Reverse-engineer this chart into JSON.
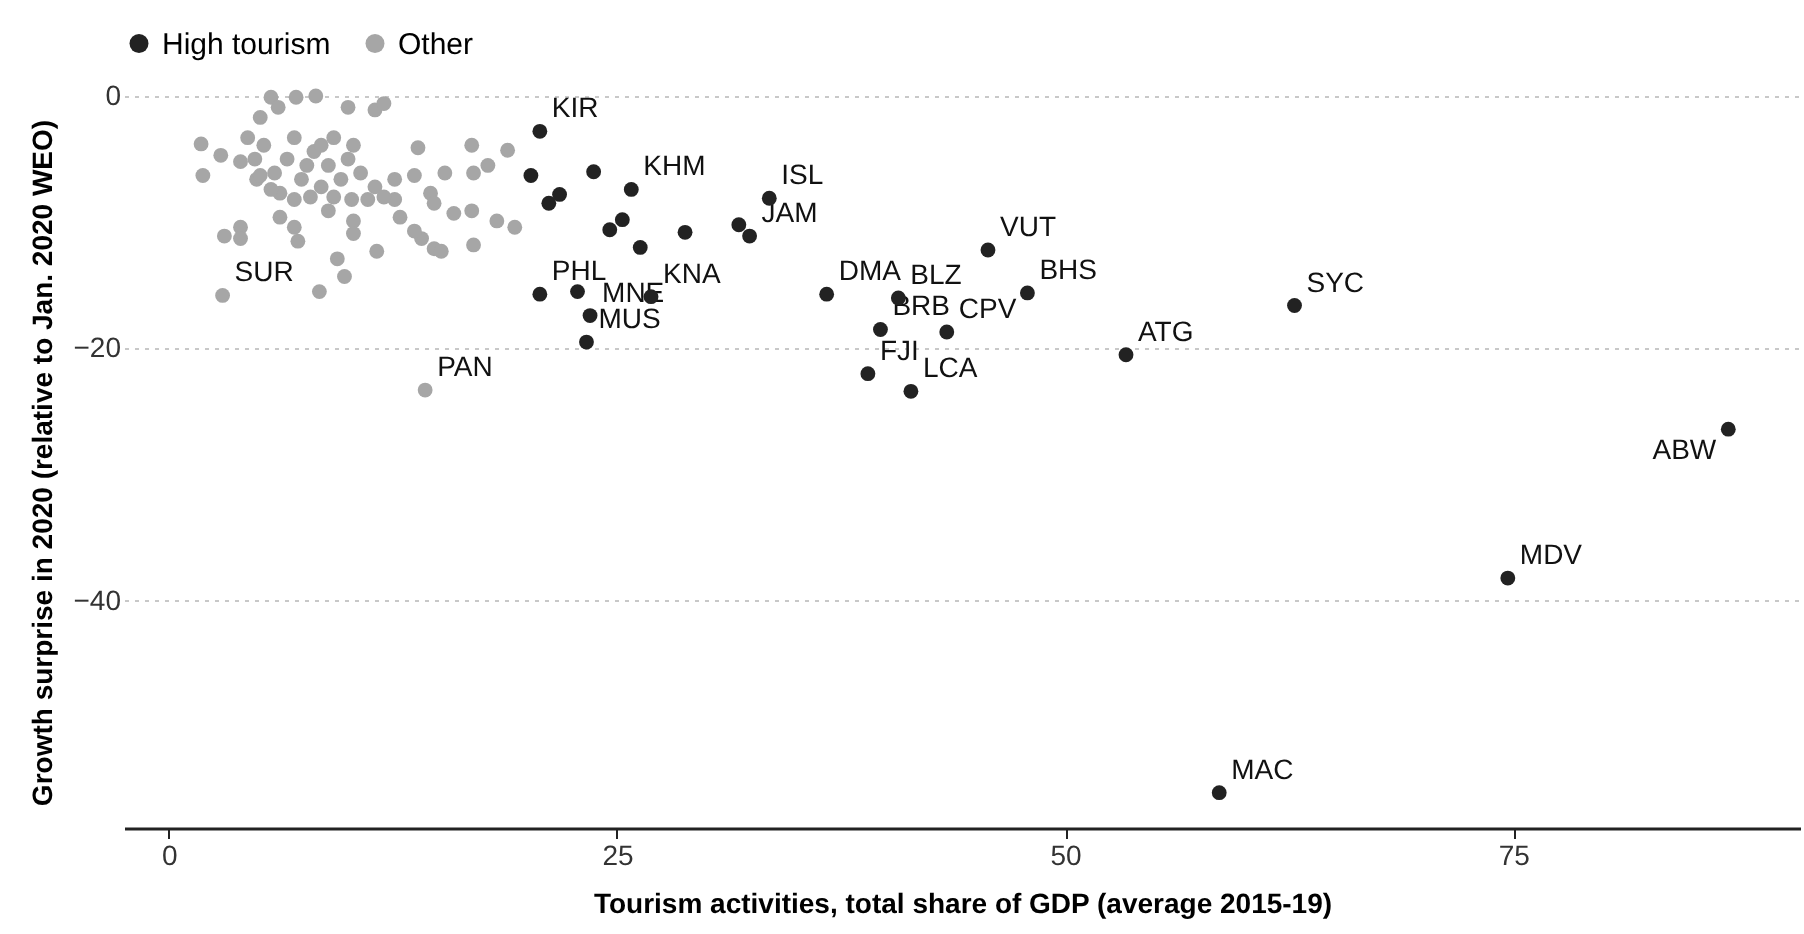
{
  "chart_data": {
    "type": "scatter",
    "xlabel": "Tourism activities, total share of GDP (average 2015-19)",
    "ylabel": "Growth surprise in 2020 (relative to Jan. 2020 WEO)",
    "series": [
      {
        "name": "High tourism",
        "color": "#222222",
        "x": [
          20.7,
          20.2,
          23.7,
          21.2,
          21.8,
          25.8,
          24.6,
          25.3,
          28.8,
          26.3,
          26.9,
          31.8,
          32.4,
          33.5,
          20.7,
          22.8,
          23.5,
          23.3,
          36.7,
          45.7,
          40.7,
          47.9,
          39.7,
          43.4,
          39.0,
          41.4,
          53.4,
          62.8,
          87.0,
          74.7,
          58.6
        ],
        "values": [
          -2.8,
          -6.3,
          -6.0,
          -8.5,
          -7.8,
          -7.4,
          -10.6,
          -9.8,
          -10.8,
          -12.0,
          -15.9,
          -10.2,
          -11.1,
          -8.1,
          -15.7,
          -15.5,
          -17.4,
          -19.5,
          -15.7,
          -12.2,
          -16.0,
          -15.6,
          -18.5,
          -18.7,
          -22.0,
          -23.4,
          -20.5,
          -16.6,
          -26.4,
          -38.2,
          -55.2
        ]
      },
      {
        "name": "Other",
        "color": "#a6a6a6",
        "x": [
          3.0,
          14.3,
          1.8,
          1.9,
          2.9,
          3.1,
          4.0,
          4.0,
          5.1,
          5.7,
          6.1,
          7.1,
          8.2,
          10.0,
          11.5,
          12.0,
          4.4,
          4.8,
          5.3,
          5.9,
          6.2,
          6.6,
          7.0,
          7.4,
          7.7,
          8.1,
          8.5,
          8.9,
          9.2,
          9.6,
          10.0,
          10.3,
          10.7,
          11.1,
          11.5,
          6.2,
          7.0,
          7.2,
          8.9,
          10.3,
          10.3,
          9.4,
          9.8,
          8.4,
          11.6,
          12.6,
          13.7,
          13.9,
          15.4,
          14.6,
          14.8,
          12.9,
          15.9,
          16.9,
          16.9,
          17.0,
          17.8,
          18.9,
          18.3,
          14.1,
          14.8,
          15.2,
          17.0,
          19.3,
          12.6,
          12.0,
          4.0,
          8.5,
          7.9,
          4.9,
          5.7,
          7.0,
          9.2,
          10.2,
          13.7,
          5.1
        ],
        "values": [
          -15.8,
          -23.3,
          -3.8,
          -6.3,
          -4.7,
          -11.1,
          -10.4,
          -11.3,
          -1.7,
          -0.1,
          -0.9,
          -0.1,
          0.0,
          -0.9,
          -1.1,
          -0.6,
          -3.3,
          -5.0,
          -3.9,
          -6.1,
          -7.7,
          -5.0,
          -3.3,
          -6.6,
          -5.5,
          -4.4,
          -3.9,
          -5.5,
          -3.3,
          -6.6,
          -5.0,
          -3.9,
          -6.1,
          -8.2,
          -7.2,
          -9.6,
          -10.4,
          -11.5,
          -9.1,
          -9.9,
          -10.9,
          -12.9,
          -14.3,
          -15.5,
          -12.3,
          -6.6,
          -6.3,
          -4.1,
          -6.1,
          -7.7,
          -8.5,
          -9.6,
          -9.3,
          -9.1,
          -3.9,
          -6.1,
          -5.5,
          -4.3,
          -9.9,
          -11.3,
          -12.1,
          -12.3,
          -11.8,
          -10.4,
          -8.2,
          -8.0,
          -5.2,
          -7.2,
          -8.0,
          -6.6,
          -7.4,
          -8.2,
          -8.0,
          -8.2,
          -10.7,
          -6.3
        ]
      }
    ],
    "annotations": [
      {
        "text": "KIR",
        "x": 20.7,
        "y": -2.8
      },
      {
        "text": "KHM",
        "x": 25.8,
        "y": -7.4
      },
      {
        "text": "ISL",
        "x": 33.5,
        "y": -8.1
      },
      {
        "text": "JAM",
        "x": 32.4,
        "y": -11.1
      },
      {
        "text": "KNA",
        "x": 26.9,
        "y": -15.9
      },
      {
        "text": "PHL",
        "x": 20.7,
        "y": -15.7
      },
      {
        "text": "MNE",
        "x": 23.5,
        "y": -17.4
      },
      {
        "text": "MUS",
        "x": 23.3,
        "y": -19.5
      },
      {
        "text": "DMA",
        "x": 36.7,
        "y": -15.7
      },
      {
        "text": "VUT",
        "x": 45.7,
        "y": -12.2
      },
      {
        "text": "BLZ",
        "x": 40.7,
        "y": -16.0
      },
      {
        "text": "BHS",
        "x": 47.9,
        "y": -15.6
      },
      {
        "text": "BRB",
        "x": 39.7,
        "y": -18.5
      },
      {
        "text": "CPV",
        "x": 43.4,
        "y": -18.7
      },
      {
        "text": "FJI",
        "x": 39.0,
        "y": -22.0
      },
      {
        "text": "LCA",
        "x": 41.4,
        "y": -23.4
      },
      {
        "text": "ATG",
        "x": 53.4,
        "y": -20.5
      },
      {
        "text": "SYC",
        "x": 62.8,
        "y": -16.6
      },
      {
        "text": "ABW",
        "x": 87.0,
        "y": -26.4
      },
      {
        "text": "MDV",
        "x": 74.7,
        "y": -38.2
      },
      {
        "text": "MAC",
        "x": 58.6,
        "y": -55.2
      },
      {
        "text": "SUR",
        "x": 3.0,
        "y": -15.8
      },
      {
        "text": "PAN",
        "x": 14.3,
        "y": -23.3
      }
    ],
    "xlim": [
      -2.5,
      91
    ],
    "xticks": [
      0,
      25,
      50,
      75
    ],
    "ylim": [
      -58,
      0
    ],
    "yticks": [
      0,
      -20,
      -40
    ],
    "grid": "y",
    "legend": "top",
    "marker": "circle"
  }
}
